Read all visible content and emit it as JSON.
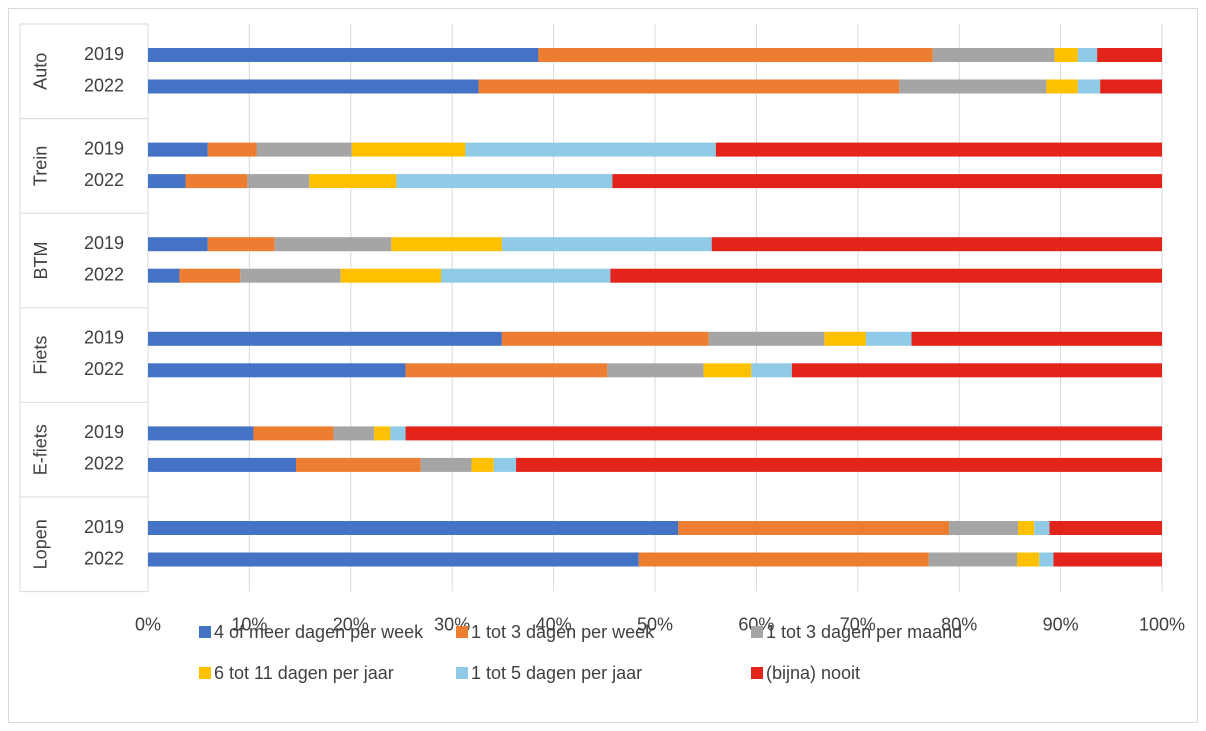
{
  "chart_data": {
    "type": "stacked_bar_horizontal",
    "groups": [
      "Auto",
      "Trein",
      "BTM",
      "Fiets",
      "E-fiets",
      "Lopen"
    ],
    "categories": [
      "2019",
      "2022",
      "2019",
      "2022",
      "2019",
      "2022",
      "2019",
      "2022",
      "2019",
      "2022",
      "2019",
      "2022"
    ],
    "series": [
      {
        "name": "4 of meer dagen per week",
        "color": "#4472c4",
        "values": [
          38.5,
          32.6,
          5.9,
          3.7,
          5.9,
          3.1,
          34.9,
          25.4,
          10.4,
          14.6,
          52.3,
          48.4
        ]
      },
      {
        "name": "1 tot 3 dagen per week",
        "color": "#ed7d31",
        "values": [
          38.9,
          41.5,
          4.8,
          6.1,
          6.6,
          6.0,
          20.4,
          19.9,
          7.9,
          12.3,
          26.7,
          28.6
        ]
      },
      {
        "name": "1 tot 3 dagen per maand",
        "color": "#a5a5a5",
        "values": [
          12.0,
          14.5,
          9.4,
          6.1,
          11.5,
          9.9,
          11.4,
          9.5,
          4.0,
          5.0,
          6.8,
          8.7
        ]
      },
      {
        "name": "6 tot 11 dagen per jaar",
        "color": "#ffc000",
        "values": [
          2.3,
          3.1,
          11.2,
          8.6,
          10.9,
          9.9,
          4.1,
          4.7,
          1.6,
          2.2,
          1.6,
          2.2
        ]
      },
      {
        "name": "1 tot 5 dagen per jaar",
        "color": "#8fcae7",
        "values": [
          1.9,
          2.2,
          24.7,
          21.3,
          20.7,
          16.7,
          4.5,
          4.0,
          1.5,
          2.2,
          1.5,
          1.4
        ]
      },
      {
        "name": "(bijna) nooit",
        "color": "#e3241b",
        "values": [
          6.4,
          6.1,
          44.0,
          54.2,
          44.4,
          54.4,
          24.7,
          36.5,
          74.6,
          63.7,
          11.1,
          10.7
        ]
      }
    ],
    "xlim": [
      0,
      100
    ],
    "xticks": [
      {
        "value": 0,
        "label": "0%"
      },
      {
        "value": 10,
        "label": "10%"
      },
      {
        "value": 20,
        "label": "20%"
      },
      {
        "value": 30,
        "label": "30%"
      },
      {
        "value": 40,
        "label": "40%"
      },
      {
        "value": 50,
        "label": "50%"
      },
      {
        "value": 60,
        "label": "60%"
      },
      {
        "value": 70,
        "label": "70%"
      },
      {
        "value": 80,
        "label": "80%"
      },
      {
        "value": 90,
        "label": "90%"
      },
      {
        "value": 100,
        "label": "100%"
      }
    ],
    "grid": true
  }
}
